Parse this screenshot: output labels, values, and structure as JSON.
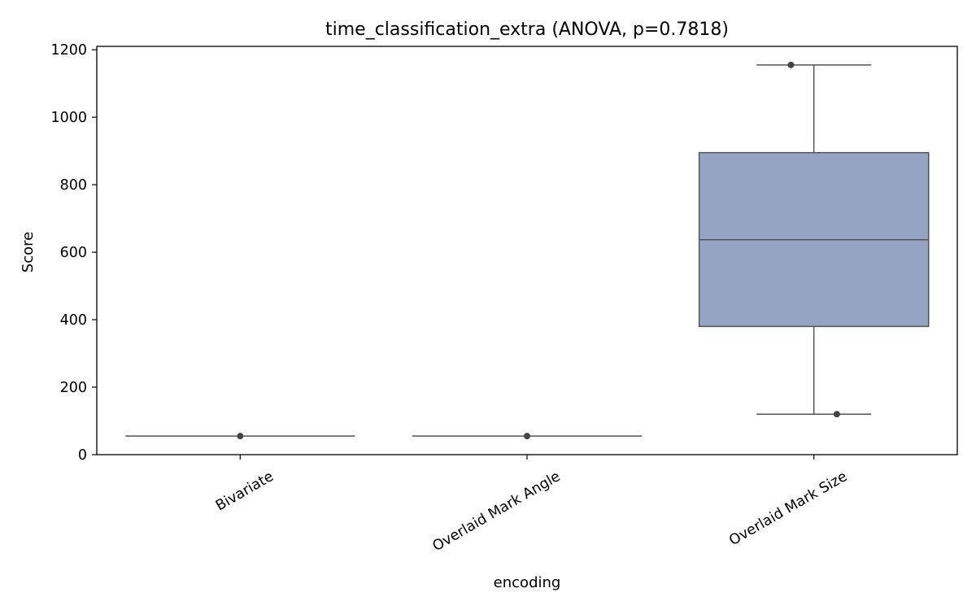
{
  "chart_data": {
    "type": "box",
    "title": "time_classification_extra (ANOVA, p=0.7818)",
    "xlabel": "encoding",
    "ylabel": "Score",
    "ylim": [
      0,
      1210
    ],
    "yticks": [
      0,
      200,
      400,
      600,
      800,
      1000,
      1200
    ],
    "categories": [
      "Bivariate",
      "Overlaid Mark Angle",
      "Overlaid Mark Size"
    ],
    "boxes": [
      {
        "category": "Bivariate",
        "whisker_low": 55,
        "q1": 55,
        "median": 55,
        "q3": 55,
        "whisker_high": 55,
        "points": [
          55
        ]
      },
      {
        "category": "Overlaid Mark Angle",
        "whisker_low": 55,
        "q1": 55,
        "median": 55,
        "q3": 55,
        "whisker_high": 55,
        "points": [
          55
        ]
      },
      {
        "category": "Overlaid Mark Size",
        "whisker_low": 120,
        "q1": 380,
        "median": 637,
        "q3": 895,
        "whisker_high": 1155,
        "points": [
          1155,
          120
        ]
      }
    ],
    "box_color": "#94a4c2",
    "line_color": "#555555",
    "point_color": "#444444",
    "grid": false,
    "legend": "none"
  }
}
